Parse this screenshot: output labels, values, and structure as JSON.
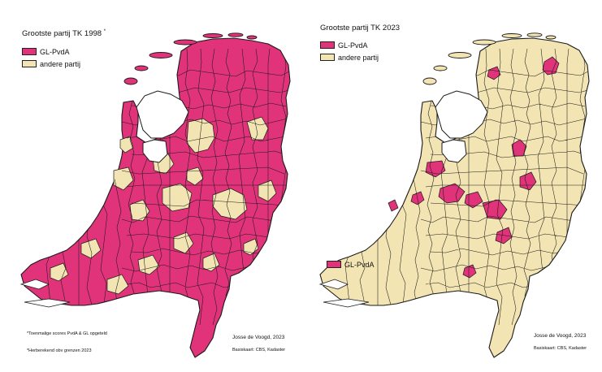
{
  "colors": {
    "gl_pvda": "#e0337a",
    "andere": "#f3e5b3",
    "outline": "#1a1a1a",
    "water": "#ffffff"
  },
  "maps": [
    {
      "title": "Grootste partij TK 1998",
      "title_mark": "*",
      "legend": [
        "GL-PvdA",
        "andere partij"
      ],
      "author": "Josse de Voogd, 2023",
      "source": "Basiskaart: CBS, Kadaster",
      "notes": [
        "*Toenmalige scores PvdA & GL opgeteld",
        "*Herberekend obv grenzen 2023"
      ],
      "base_fill": "gl_pvda",
      "island_legend": null
    },
    {
      "title": "Grootste partij TK 2023",
      "title_mark": "",
      "legend": [
        "GL-PvdA",
        "andere partij"
      ],
      "author": "Josse de Voogd, 2023",
      "source": "Basiskaart: CBS, Kadaster",
      "notes": [],
      "base_fill": "andere",
      "island_legend": "GL-PvdA"
    }
  ]
}
